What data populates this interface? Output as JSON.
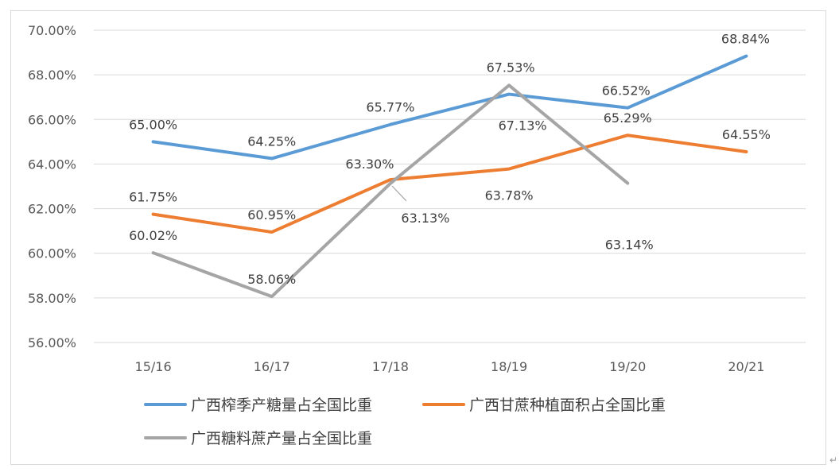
{
  "chart_data": {
    "type": "line",
    "title": "",
    "xlabel": "",
    "ylabel": "",
    "categories": [
      "15/16",
      "16/17",
      "17/18",
      "18/19",
      "19/20",
      "20/21"
    ],
    "ylim": [
      56,
      70
    ],
    "ytick_step": 2,
    "y_tick_labels": [
      "56.00%",
      "58.00%",
      "60.00%",
      "62.00%",
      "64.00%",
      "66.00%",
      "68.00%",
      "70.00%"
    ],
    "grid": true,
    "legend_position": "bottom",
    "series": [
      {
        "name": "广西榨季产糖量占全国比重",
        "color": "#5b9bd5",
        "values": [
          65.0,
          64.25,
          65.77,
          67.13,
          66.52,
          68.84
        ],
        "labels": [
          "65.00%",
          "64.25%",
          "65.77%",
          "67.13%",
          "66.52%",
          "68.84%"
        ]
      },
      {
        "name": "广西甘蔗种植面积占全国比重",
        "color": "#ed7d31",
        "values": [
          61.75,
          60.95,
          63.3,
          63.78,
          65.29,
          64.55
        ],
        "labels": [
          "61.75%",
          "60.95%",
          "63.30%",
          "63.78%",
          "65.29%",
          "64.55%"
        ]
      },
      {
        "name": "广西糖料蔗产量占全国比重",
        "color": "#a5a5a5",
        "values": [
          60.02,
          58.06,
          63.13,
          67.53,
          63.14,
          null
        ],
        "labels": [
          "60.02%",
          "58.06%",
          "63.13%",
          "67.53%",
          "63.14%",
          null
        ]
      }
    ]
  }
}
